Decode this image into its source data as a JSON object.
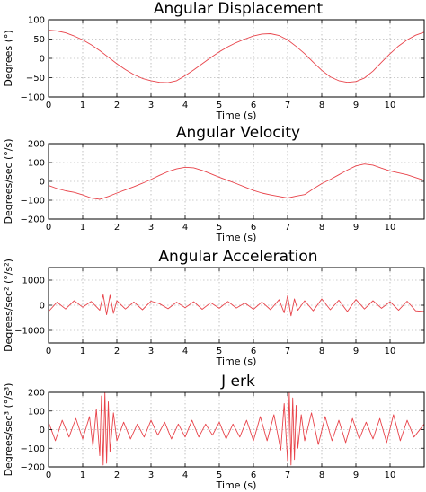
{
  "colors": {
    "series": "#e8434a",
    "grid": "#9a9a9a",
    "frame": "#000000"
  },
  "chart_data": [
    {
      "type": "line",
      "title": "Angular Displacement",
      "xlabel": "Time (s)",
      "ylabel": "Degrees (°)",
      "xlim": [
        0,
        11
      ],
      "ylim": [
        -100,
        100
      ],
      "xticks": [
        0,
        1,
        2,
        3,
        4,
        5,
        6,
        7,
        8,
        9,
        10
      ],
      "yticks": [
        -100,
        -50,
        0,
        50,
        100
      ],
      "ytick_labels": [
        "−100",
        "−50",
        "0",
        "50",
        "100"
      ],
      "grid": true,
      "series": [
        {
          "x": [
            0,
            0.25,
            0.5,
            0.75,
            1,
            1.25,
            1.5,
            1.75,
            2,
            2.25,
            2.5,
            2.75,
            3,
            3.25,
            3.5,
            3.75,
            4,
            4.25,
            4.5,
            4.75,
            5,
            5.25,
            5.5,
            5.75,
            6,
            6.25,
            6.5,
            6.75,
            7,
            7.25,
            7.5,
            7.75,
            8,
            8.25,
            8.5,
            8.75,
            9,
            9.25,
            9.5,
            9.75,
            10,
            10.25,
            10.5,
            10.75,
            11
          ],
          "y": [
            73,
            71,
            66,
            58,
            48,
            35,
            20,
            3,
            -14,
            -29,
            -42,
            -52,
            -58,
            -62,
            -63,
            -58,
            -45,
            -30,
            -14,
            2,
            17,
            30,
            41,
            50,
            58,
            63,
            64,
            59,
            48,
            31,
            12,
            -10,
            -31,
            -48,
            -58,
            -62,
            -60,
            -51,
            -33,
            -10,
            12,
            32,
            48,
            60,
            68
          ]
        }
      ]
    },
    {
      "type": "line",
      "title": "Angular Velocity",
      "xlabel": "Time (s)",
      "ylabel": "Degrees/sec (°/s)",
      "xlim": [
        0,
        11
      ],
      "ylim": [
        -200,
        200
      ],
      "xticks": [
        0,
        1,
        2,
        3,
        4,
        5,
        6,
        7,
        8,
        9,
        10
      ],
      "yticks": [
        -200,
        -100,
        0,
        100,
        200
      ],
      "ytick_labels": [
        "−200",
        "−100",
        "0",
        "100",
        "200"
      ],
      "grid": true,
      "series": [
        {
          "x": [
            0,
            0.25,
            0.5,
            0.75,
            1,
            1.25,
            1.5,
            1.75,
            2,
            2.25,
            2.5,
            2.75,
            3,
            3.25,
            3.5,
            3.75,
            4,
            4.25,
            4.5,
            4.75,
            5,
            5.25,
            5.5,
            5.75,
            6,
            6.25,
            6.5,
            6.75,
            7,
            7.25,
            7.5,
            7.75,
            8,
            8.25,
            8.5,
            8.75,
            9,
            9.25,
            9.5,
            9.75,
            10,
            10.25,
            10.5,
            10.75,
            11
          ],
          "y": [
            -22,
            -38,
            -50,
            -58,
            -72,
            -88,
            -95,
            -80,
            -62,
            -45,
            -28,
            -10,
            10,
            32,
            52,
            66,
            75,
            72,
            58,
            40,
            22,
            5,
            -12,
            -30,
            -48,
            -62,
            -72,
            -80,
            -88,
            -78,
            -70,
            -40,
            -12,
            10,
            35,
            60,
            82,
            92,
            86,
            70,
            55,
            45,
            35,
            20,
            5
          ]
        }
      ]
    },
    {
      "type": "line",
      "title": "Angular Acceleration",
      "xlabel": "Time (s)",
      "ylabel": "Degrees/sec² (°/s²)",
      "xlim": [
        0,
        11
      ],
      "ylim": [
        -1500,
        1500
      ],
      "xticks": [
        0,
        1,
        2,
        3,
        4,
        5,
        6,
        7,
        8,
        9,
        10
      ],
      "yticks": [
        -1000,
        0,
        1000
      ],
      "ytick_labels": [
        "−1000",
        "0",
        "1000"
      ],
      "grid": true,
      "series": [
        {
          "x": [
            0,
            0.25,
            0.5,
            0.75,
            1,
            1.25,
            1.5,
            1.6,
            1.7,
            1.8,
            1.9,
            2,
            2.25,
            2.5,
            2.75,
            3,
            3.25,
            3.5,
            3.75,
            4,
            4.25,
            4.5,
            4.75,
            5,
            5.25,
            5.5,
            5.75,
            6,
            6.25,
            6.5,
            6.75,
            6.9,
            7,
            7.1,
            7.2,
            7.3,
            7.5,
            7.75,
            8,
            8.25,
            8.5,
            8.75,
            9,
            9.25,
            9.5,
            9.75,
            10,
            10.25,
            10.5,
            10.75,
            11
          ],
          "y": [
            -250,
            120,
            -150,
            180,
            -80,
            150,
            -200,
            420,
            -380,
            400,
            -320,
            180,
            -150,
            130,
            -180,
            160,
            60,
            -140,
            120,
            -100,
            140,
            -160,
            100,
            -120,
            150,
            -110,
            90,
            -160,
            130,
            -180,
            220,
            -300,
            380,
            -420,
            250,
            -200,
            180,
            -220,
            250,
            -180,
            200,
            -250,
            230,
            -150,
            180,
            -120,
            140,
            -200,
            160,
            -220,
            -250
          ]
        }
      ]
    },
    {
      "type": "line",
      "title": "J erk",
      "xlabel": "Time (s)",
      "ylabel": "Degrees/sec³ (°/s³)",
      "xlim": [
        0,
        11
      ],
      "ylim": [
        -200,
        200
      ],
      "xticks": [
        0,
        1,
        2,
        3,
        4,
        5,
        6,
        7,
        8,
        9,
        10
      ],
      "yticks": [
        -200,
        -100,
        0,
        100,
        200
      ],
      "ytick_labels": [
        "−200",
        "−100",
        "0",
        "100",
        "200"
      ],
      "grid": true,
      "series": [
        {
          "x": [
            0,
            0.2,
            0.4,
            0.6,
            0.8,
            1,
            1.2,
            1.3,
            1.4,
            1.5,
            1.55,
            1.6,
            1.65,
            1.7,
            1.75,
            1.8,
            1.9,
            2,
            2.2,
            2.4,
            2.6,
            2.8,
            3,
            3.2,
            3.4,
            3.6,
            3.8,
            4,
            4.2,
            4.4,
            4.6,
            4.8,
            5,
            5.2,
            5.4,
            5.6,
            5.8,
            6,
            6.2,
            6.4,
            6.6,
            6.8,
            6.9,
            7,
            7.05,
            7.1,
            7.15,
            7.2,
            7.25,
            7.3,
            7.4,
            7.5,
            7.7,
            7.9,
            8.1,
            8.3,
            8.5,
            8.7,
            8.9,
            9.1,
            9.3,
            9.5,
            9.7,
            9.9,
            10.1,
            10.3,
            10.5,
            10.7,
            11
          ],
          "y": [
            40,
            -60,
            50,
            -40,
            60,
            -50,
            70,
            -90,
            110,
            -140,
            180,
            -190,
            200,
            -180,
            150,
            -120,
            90,
            -60,
            40,
            -50,
            30,
            -40,
            50,
            -30,
            40,
            -50,
            30,
            -40,
            50,
            -40,
            30,
            -30,
            40,
            -50,
            30,
            -40,
            50,
            -60,
            70,
            -60,
            80,
            -110,
            140,
            -170,
            200,
            -190,
            170,
            -160,
            130,
            -100,
            80,
            -60,
            90,
            -80,
            70,
            -60,
            50,
            -70,
            60,
            -50,
            40,
            -50,
            60,
            -70,
            80,
            -60,
            50,
            -40,
            30
          ]
        }
      ]
    }
  ]
}
